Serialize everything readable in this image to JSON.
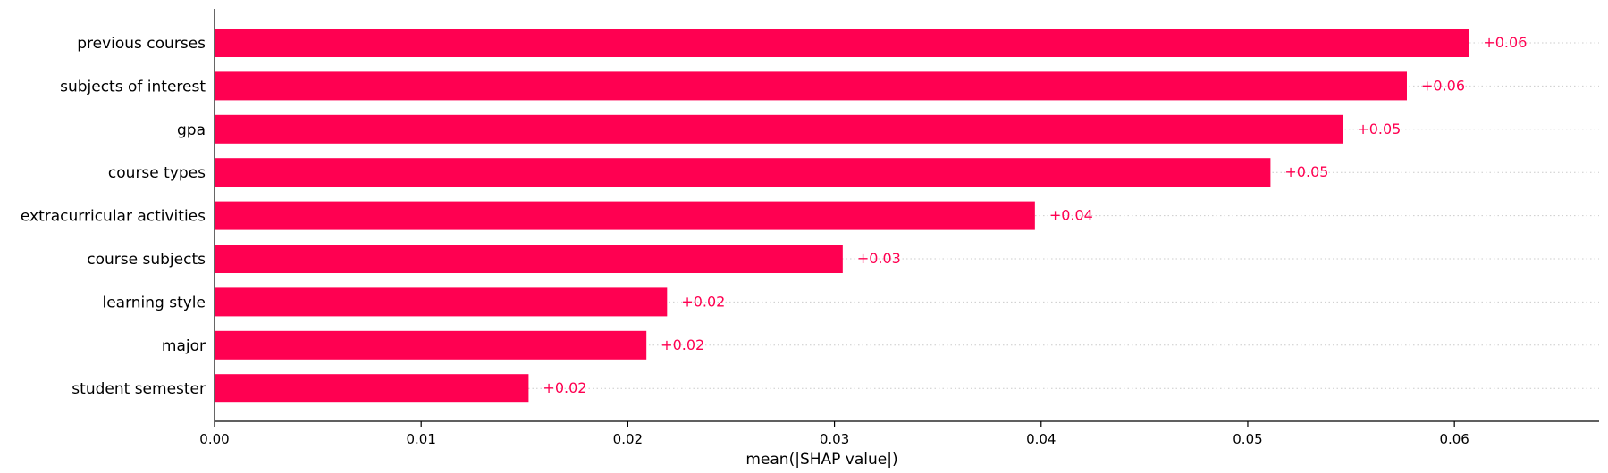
{
  "chart_data": {
    "type": "bar",
    "orientation": "horizontal",
    "categories": [
      "previous courses",
      "subjects of interest",
      "gpa",
      "course types",
      "extracurricular activities",
      "course subjects",
      "learning style",
      "major",
      "student semester"
    ],
    "values": [
      0.0607,
      0.0577,
      0.0546,
      0.0511,
      0.0397,
      0.0304,
      0.0219,
      0.0209,
      0.0152
    ],
    "value_labels": [
      "+0.06",
      "+0.06",
      "+0.05",
      "+0.05",
      "+0.04",
      "+0.03",
      "+0.02",
      "+0.02",
      "+0.02"
    ],
    "xlabel": "mean(|SHAP value|)",
    "xlim": [
      0,
      0.067
    ],
    "xticks": [
      {
        "value": 0.0,
        "label": "0.00"
      },
      {
        "value": 0.01,
        "label": "0.01"
      },
      {
        "value": 0.02,
        "label": "0.02"
      },
      {
        "value": 0.03,
        "label": "0.03"
      },
      {
        "value": 0.04,
        "label": "0.04"
      },
      {
        "value": 0.05,
        "label": "0.05"
      },
      {
        "value": 0.06,
        "label": "0.06"
      }
    ],
    "grid": "horizontal dotted row guides",
    "bar_color": "#ff0051",
    "label_color": "#ff0051",
    "guide_color": "#cccccc"
  }
}
